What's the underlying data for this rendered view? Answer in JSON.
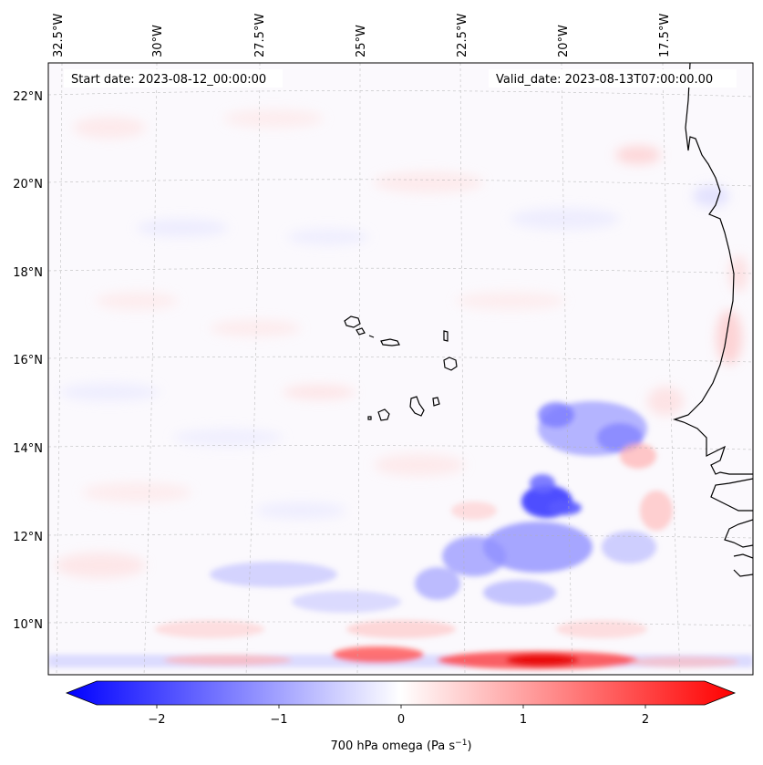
{
  "map": {
    "start_label": "Start date: 2023-08-12_00:00:00",
    "valid_label": "Valid_date: 2023-08-13T07:00:00.00",
    "lon_ticks": [
      "32.5°W",
      "30°W",
      "27.5°W",
      "25°W",
      "22.5°W",
      "20°W",
      "17.5°W"
    ],
    "lat_ticks": [
      "22°N",
      "20°N",
      "18°N",
      "16°N",
      "14°N",
      "12°N",
      "10°N"
    ],
    "colorbar": {
      "title": "700 hPa omega (Pa s",
      "title_superscript": "−1",
      "title_suffix": ")",
      "ticks": [
        "−2",
        "−1",
        "0",
        "1",
        "2"
      ],
      "colors": {
        "negative": "#0000ff",
        "neutral": "#ffffff",
        "positive": "#ff0000"
      }
    },
    "colors": {
      "coastline": "#000000",
      "gridline": "#b0b0b0"
    }
  }
}
